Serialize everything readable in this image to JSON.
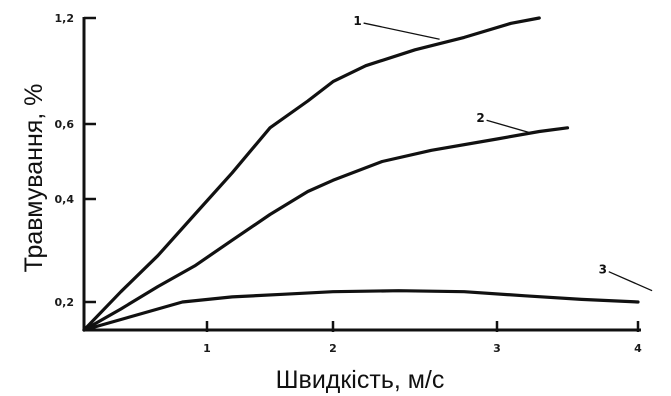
{
  "chart_data": {
    "type": "line",
    "xlabel": "Швидкість, м/с",
    "ylabel": "Травмування, %",
    "x_ticks": [
      {
        "value": 1,
        "label": "1"
      },
      {
        "value": 2,
        "label": "2"
      },
      {
        "value": 3,
        "label": "3"
      },
      {
        "value": 4,
        "label": "4"
      }
    ],
    "y_ticks": [
      {
        "value": 0.2,
        "label": "0,2"
      },
      {
        "value": 0.4,
        "label": "0,4"
      },
      {
        "value": 0.6,
        "label": "0,6"
      },
      {
        "value": 1.2,
        "label": "1,2"
      }
    ],
    "series": [
      {
        "name": "1",
        "points": [
          [
            0.0,
            0.16
          ],
          [
            0.3,
            0.22
          ],
          [
            0.6,
            0.29
          ],
          [
            0.9,
            0.37
          ],
          [
            1.2,
            0.47
          ],
          [
            1.5,
            0.59
          ],
          [
            1.8,
            0.73
          ],
          [
            2.0,
            0.84
          ],
          [
            2.2,
            0.93
          ],
          [
            2.5,
            1.02
          ],
          [
            2.8,
            1.09
          ],
          [
            3.1,
            1.17
          ],
          [
            3.3,
            1.2
          ]
        ]
      },
      {
        "name": "2",
        "points": [
          [
            0.0,
            0.16
          ],
          [
            0.3,
            0.19
          ],
          [
            0.6,
            0.23
          ],
          [
            0.9,
            0.27
          ],
          [
            1.2,
            0.32
          ],
          [
            1.5,
            0.37
          ],
          [
            1.8,
            0.42
          ],
          [
            2.0,
            0.45
          ],
          [
            2.3,
            0.5
          ],
          [
            2.6,
            0.53
          ],
          [
            3.0,
            0.56
          ],
          [
            3.3,
            0.58
          ],
          [
            3.5,
            0.59
          ]
        ]
      },
      {
        "name": "3",
        "points": [
          [
            0.0,
            0.16
          ],
          [
            0.4,
            0.18
          ],
          [
            0.8,
            0.2
          ],
          [
            1.2,
            0.21
          ],
          [
            1.6,
            0.215
          ],
          [
            2.0,
            0.22
          ],
          [
            2.4,
            0.222
          ],
          [
            2.8,
            0.22
          ],
          [
            3.2,
            0.212
          ],
          [
            3.6,
            0.205
          ],
          [
            4.0,
            0.2
          ]
        ]
      }
    ],
    "curve_labels": [
      {
        "text": "1",
        "x": 2.15,
        "y": 1.16,
        "line_to": [
          2.65,
          1.08
        ]
      },
      {
        "text": "2",
        "x": 2.9,
        "y": 0.61,
        "line_to": [
          3.25,
          0.575
        ]
      },
      {
        "text": "3",
        "x": 3.75,
        "y": 0.255,
        "line_to": [
          4.1,
          0.222
        ]
      }
    ],
    "xlim": [
      0,
      4.6
    ],
    "ylim": [
      0.16,
      1.2
    ],
    "y_scale": "nonlinear",
    "grid": false,
    "legend": "none",
    "line_color": "#111111"
  }
}
